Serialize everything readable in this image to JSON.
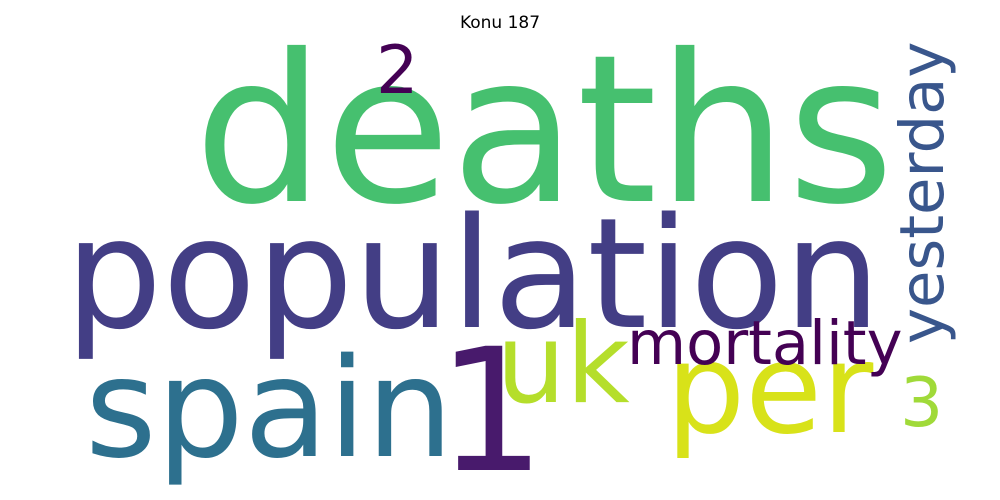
{
  "title": "Konu 187",
  "words": [
    {
      "text": "deaths",
      "color": "#46c06f",
      "orientation": "horizontal"
    },
    {
      "text": "population",
      "color": "#433e85",
      "orientation": "horizontal"
    },
    {
      "text": "spain",
      "color": "#2d708e",
      "orientation": "horizontal"
    },
    {
      "text": "1",
      "color": "#481a6c",
      "orientation": "horizontal"
    },
    {
      "text": "uk",
      "color": "#b5de2b",
      "orientation": "horizontal"
    },
    {
      "text": "per",
      "color": "#d8e219",
      "orientation": "horizontal"
    },
    {
      "text": "mortality",
      "color": "#440154",
      "orientation": "horizontal"
    },
    {
      "text": "yesterday",
      "color": "#39568c",
      "orientation": "vertical"
    },
    {
      "text": "2",
      "color": "#440154",
      "orientation": "horizontal"
    },
    {
      "text": "3",
      "color": "#a0da39",
      "orientation": "horizontal"
    }
  ]
}
